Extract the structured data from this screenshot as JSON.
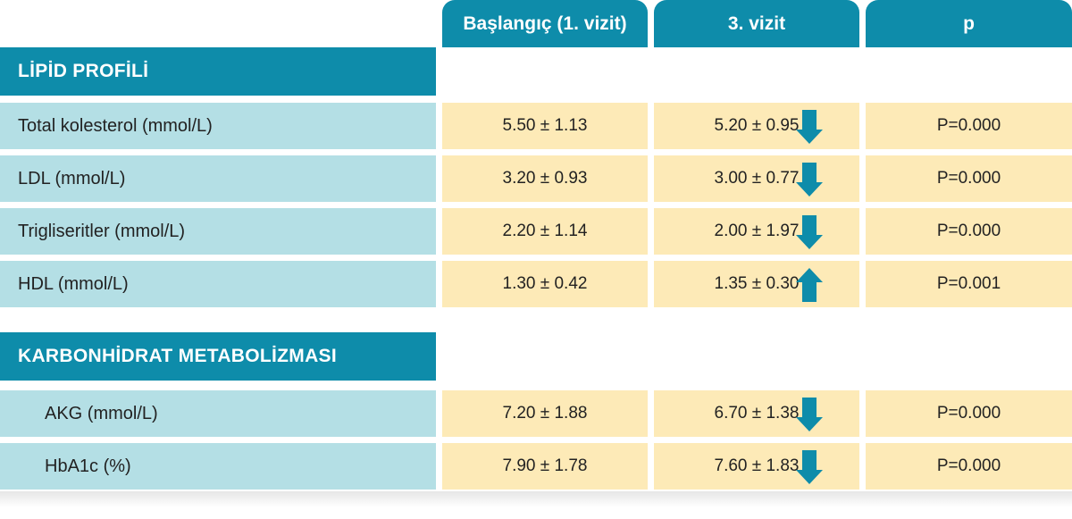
{
  "header": {
    "col1": "Başlangıç (1. vizit)",
    "col2": "3. vizit",
    "col3": "p"
  },
  "sections": [
    {
      "title": "LİPİD PROFİLİ",
      "rows": [
        {
          "label": "Total kolesterol (mmol/L)",
          "baseline": "5.50 ± 1.13",
          "visit3": "5.20 ± 0.95",
          "trend": "down",
          "p": "P=0.000"
        },
        {
          "label": "LDL (mmol/L)",
          "baseline": "3.20 ± 0.93",
          "visit3": "3.00 ± 0.77",
          "trend": "down",
          "p": "P=0.000"
        },
        {
          "label": "Trigliseritler (mmol/L)",
          "baseline": "2.20 ± 1.14",
          "visit3": "2.00 ± 1.97",
          "trend": "down",
          "p": "P=0.000"
        },
        {
          "label": "HDL (mmol/L)",
          "baseline": "1.30 ± 0.42",
          "visit3": "1.35 ± 0.30",
          "trend": "up",
          "p": "P=0.001"
        }
      ]
    },
    {
      "title": "KARBONHİDRAT METABOLİZMASI",
      "rows": [
        {
          "label": "AKG (mmol/L)",
          "baseline": "7.20 ± 1.88",
          "visit3": "6.70 ± 1.38",
          "trend": "down",
          "p": "P=0.000"
        },
        {
          "label": "HbA1c (%)",
          "baseline": "7.90 ± 1.78",
          "visit3": "7.60 ± 1.83",
          "trend": "down",
          "p": "P=0.000"
        }
      ]
    }
  ],
  "colors": {
    "header": "#0e8caa",
    "label_bg": "#b4dfe5",
    "value_bg": "#fdeab7",
    "arrow": "#0e8caa"
  }
}
